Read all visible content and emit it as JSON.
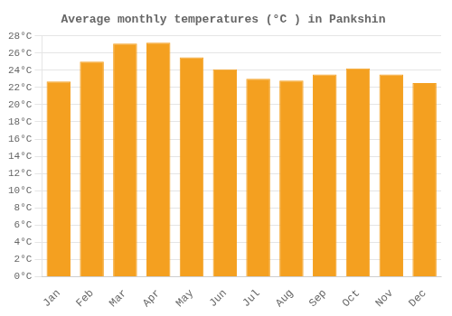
{
  "chart_data": {
    "type": "bar",
    "title": "Average monthly temperatures (°C ) in Pankshin",
    "categories": [
      "Jan",
      "Feb",
      "Mar",
      "Apr",
      "May",
      "Jun",
      "Jul",
      "Aug",
      "Sep",
      "Oct",
      "Nov",
      "Dec"
    ],
    "values": [
      22.7,
      25.0,
      27.1,
      27.2,
      25.5,
      24.1,
      23.0,
      22.8,
      23.5,
      24.2,
      23.5,
      22.5
    ],
    "color": "#F4A020",
    "ylim": [
      0,
      28
    ],
    "yticks": [
      {
        "value": 0,
        "label": "0°C"
      },
      {
        "value": 2,
        "label": "2°C"
      },
      {
        "value": 4,
        "label": "4°C"
      },
      {
        "value": 6,
        "label": "6°C"
      },
      {
        "value": 8,
        "label": "8°C"
      },
      {
        "value": 10,
        "label": "10°C"
      },
      {
        "value": 12,
        "label": "12°C"
      },
      {
        "value": 14,
        "label": "14°C"
      },
      {
        "value": 16,
        "label": "16°C"
      },
      {
        "value": 18,
        "label": "18°C"
      },
      {
        "value": 20,
        "label": "20°C"
      },
      {
        "value": 22,
        "label": "22°C"
      },
      {
        "value": 24,
        "label": "24°C"
      },
      {
        "value": 26,
        "label": "26°C"
      },
      {
        "value": 28,
        "label": "28°C"
      }
    ],
    "grid": true
  }
}
